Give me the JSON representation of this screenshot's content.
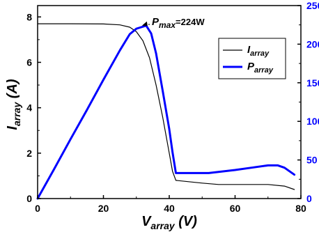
{
  "chart_data": {
    "type": "line",
    "x_axis": {
      "label_main": "V",
      "label_sub": "array",
      "label_unit": " (V)",
      "range": [
        0,
        80
      ],
      "ticks": [
        0,
        20,
        40,
        60,
        80
      ]
    },
    "y_axis_left": {
      "label_main": "I",
      "label_sub": "array",
      "label_unit": " (A)",
      "range": [
        0,
        8.5
      ],
      "ticks": [
        0,
        2,
        4,
        6,
        8
      ]
    },
    "y_axis_right": {
      "range": [
        0,
        250
      ],
      "ticks": [
        0,
        50,
        100,
        150,
        200,
        250
      ],
      "color": "#0000ff"
    },
    "series": [
      {
        "name_main": "I",
        "name_sub": "array",
        "axis": "left",
        "color": "#000000",
        "points": [
          [
            0,
            7.7
          ],
          [
            10,
            7.7
          ],
          [
            20,
            7.69
          ],
          [
            25,
            7.65
          ],
          [
            28,
            7.55
          ],
          [
            30,
            7.35
          ],
          [
            32,
            6.95
          ],
          [
            34,
            6.2
          ],
          [
            36,
            5.0
          ],
          [
            38,
            3.6
          ],
          [
            40,
            2.0
          ],
          [
            41,
            1.2
          ],
          [
            42,
            0.8
          ],
          [
            50,
            0.68
          ],
          [
            55,
            0.62
          ],
          [
            70,
            0.62
          ],
          [
            75,
            0.55
          ],
          [
            78,
            0.4
          ]
        ]
      },
      {
        "name_main": "P",
        "name_sub": "array",
        "axis": "right",
        "color": "#0000ff",
        "points": [
          [
            0,
            0
          ],
          [
            5,
            38
          ],
          [
            10,
            77
          ],
          [
            15,
            115
          ],
          [
            20,
            154
          ],
          [
            25,
            192
          ],
          [
            28,
            213
          ],
          [
            30,
            220
          ],
          [
            31.5,
            222
          ],
          [
            33,
            224
          ],
          [
            34.5,
            214
          ],
          [
            36,
            188
          ],
          [
            38,
            140
          ],
          [
            40,
            90
          ],
          [
            41,
            60
          ],
          [
            42,
            33
          ],
          [
            52,
            33
          ],
          [
            60,
            37
          ],
          [
            65,
            40
          ],
          [
            70,
            43
          ],
          [
            73,
            43
          ],
          [
            75,
            40
          ],
          [
            78,
            31
          ]
        ]
      }
    ],
    "annotation": {
      "label_main": "P",
      "label_sub": "max",
      "label_value": "=224W",
      "point": [
        31.5,
        224
      ]
    },
    "legend": {
      "position": "top-right"
    },
    "grid": false
  }
}
